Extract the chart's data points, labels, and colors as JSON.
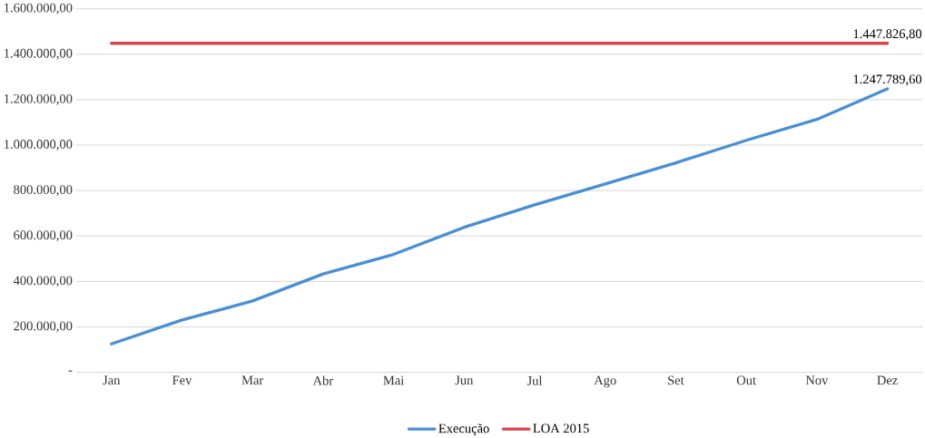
{
  "chart_data": {
    "type": "line",
    "categories": [
      "Jan",
      "Fev",
      "Mar",
      "Abr",
      "Mai",
      "Jun",
      "Jul",
      "Ago",
      "Set",
      "Out",
      "Nov",
      "Dez"
    ],
    "series": [
      {
        "name": "Execução",
        "color": "#4a8fd4",
        "values": [
          125000,
          230000,
          314000,
          433000,
          519000,
          638000,
          737000,
          829000,
          922000,
          1021000,
          1113000,
          1247789.6
        ],
        "value_labels": [
          null,
          null,
          null,
          null,
          null,
          null,
          null,
          null,
          null,
          null,
          null,
          "1.247.789,60"
        ]
      },
      {
        "name": "LOA 2015",
        "color": "#d9434f",
        "values": [
          1447826.8,
          1447826.8,
          1447826.8,
          1447826.8,
          1447826.8,
          1447826.8,
          1447826.8,
          1447826.8,
          1447826.8,
          1447826.8,
          1447826.8,
          1447826.8
        ],
        "value_labels": [
          null,
          null,
          null,
          null,
          null,
          null,
          null,
          null,
          null,
          null,
          null,
          "1.447.826,80"
        ]
      }
    ],
    "ylim": [
      0,
      1600000
    ],
    "yticks": [
      {
        "value": 0,
        "label": "-"
      },
      {
        "value": 200000,
        "label": "200.000,00"
      },
      {
        "value": 400000,
        "label": "400.000,00"
      },
      {
        "value": 600000,
        "label": "600.000,00"
      },
      {
        "value": 800000,
        "label": "800.000,00"
      },
      {
        "value": 1000000,
        "label": "1.000.000,00"
      },
      {
        "value": 1200000,
        "label": "1.200.000,00"
      },
      {
        "value": 1400000,
        "label": "1.400.000,00"
      },
      {
        "value": 1600000,
        "label": "1.600.000,00"
      }
    ],
    "grid": "y",
    "legend": "bottom",
    "marker": "none",
    "line_style": "solid"
  }
}
